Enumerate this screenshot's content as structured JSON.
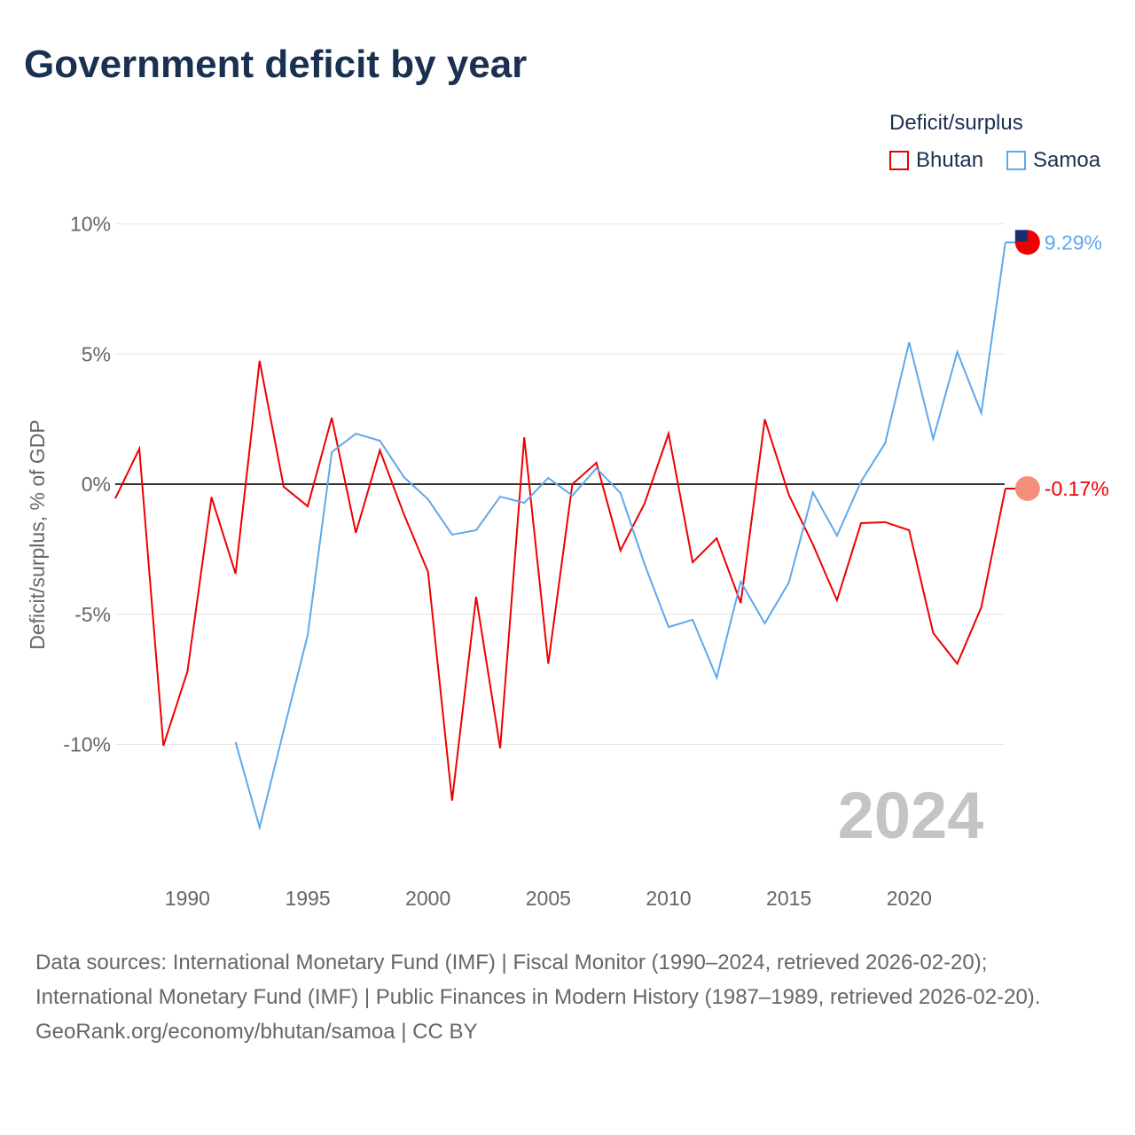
{
  "chart_data": {
    "type": "line",
    "title": "Government deficit by year",
    "ylabel": "Deficit/surplus, % of GDP",
    "xlabel": "",
    "ylim": [
      -14,
      11
    ],
    "xlim": [
      1987,
      2024
    ],
    "yticks": [
      {
        "v": 10,
        "label": "10%"
      },
      {
        "v": 5,
        "label": "5%"
      },
      {
        "v": 0,
        "label": "0%"
      },
      {
        "v": -5,
        "label": "-5%"
      },
      {
        "v": -10,
        "label": "-10%"
      }
    ],
    "xticks": [
      {
        "v": 1990,
        "label": "1990"
      },
      {
        "v": 1995,
        "label": "1995"
      },
      {
        "v": 2000,
        "label": "2000"
      },
      {
        "v": 2005,
        "label": "2005"
      },
      {
        "v": 2010,
        "label": "2010"
      },
      {
        "v": 2015,
        "label": "2015"
      },
      {
        "v": 2020,
        "label": "2020"
      }
    ],
    "legend_title": "Deficit/surplus",
    "legend_position": "top-right",
    "year_label": "2024",
    "series": [
      {
        "name": "Bhutan",
        "color": "#ee0000",
        "start": 1987,
        "end_label": "-0.17%",
        "values": [
          -0.55,
          1.36,
          -10.05,
          -7.2,
          -0.5,
          -3.44,
          4.74,
          -0.1,
          -0.85,
          2.55,
          -1.87,
          1.3,
          -1.16,
          -3.37,
          -12.16,
          -4.33,
          -10.15,
          1.8,
          -6.9,
          0,
          0.82,
          -2.55,
          -0.75,
          1.94,
          -3.0,
          -2.08,
          -4.57,
          2.49,
          -0.41,
          -2.32,
          -4.46,
          -1.5,
          -1.46,
          -1.77,
          -5.72,
          -6.9,
          -4.73,
          -0.17
        ]
      },
      {
        "name": "Samoa",
        "color": "#5ea8ec",
        "start": 1992,
        "end_label": "9.29%",
        "values": [
          -9.91,
          -13.19,
          -9.47,
          -5.79,
          1.23,
          1.94,
          1.67,
          0.27,
          -0.58,
          -1.94,
          -1.77,
          -0.48,
          -0.72,
          0.24,
          -0.44,
          0.61,
          -0.34,
          -3.07,
          -5.49,
          -5.21,
          -7.43,
          -3.75,
          -5.35,
          -3.78,
          -0.31,
          -1.98,
          0.1,
          1.57,
          5.45,
          1.74,
          5.08,
          2.73,
          9.29
        ]
      }
    ]
  },
  "footer": {
    "line1": "Data sources: International Monetary Fund (IMF) | Fiscal Monitor (1990–2024, retrieved 2026-02-20); International Monetary Fund (IMF) | Public Finances in Modern History (1987–1989, retrieved 2026-02-20).",
    "line2": "GeoRank.org/economy/bhutan/samoa | CC BY"
  }
}
